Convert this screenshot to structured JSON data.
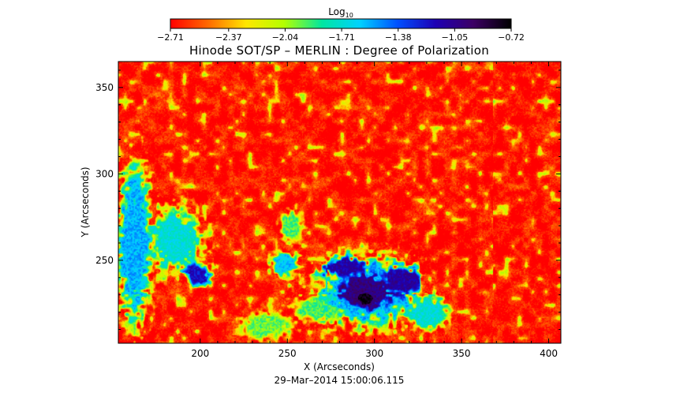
{
  "chart_data": {
    "type": "heatmap",
    "title": "Hinode SOT/SP – MERLIN : Degree of Polarization",
    "xlabel": "X (Arcseconds)",
    "ylabel": "Y (Arcseconds)",
    "xlim": [
      153,
      407
    ],
    "ylim": [
      202,
      365
    ],
    "x_ticks": [
      "200",
      "250",
      "300",
      "350",
      "400"
    ],
    "x_tick_values": [
      200,
      250,
      300,
      350,
      400
    ],
    "y_ticks": [
      "350",
      "300",
      "250"
    ],
    "y_tick_values": [
      350,
      300,
      250
    ],
    "timestamp": "29–Mar–2014 15:00:06.115",
    "colorbar": {
      "label_base": "Log",
      "label_sub": "10",
      "range": [
        -2.71,
        -0.72
      ],
      "tick_labels": [
        "−2.71",
        "−2.37",
        "−2.04",
        "−1.71",
        "−1.38",
        "−1.05",
        "−0.72"
      ],
      "tick_values": [
        -2.71,
        -2.37,
        -2.04,
        -1.71,
        -1.38,
        -1.05,
        -0.72
      ],
      "colors": [
        "#ff0000",
        "#ff6a00",
        "#ffe600",
        "#b4ff00",
        "#00e6a0",
        "#00d2ff",
        "#0050ff",
        "#1e00b4",
        "#3c0064",
        "#000000"
      ]
    },
    "background_level": -2.65,
    "regions": [
      {
        "name": "sunspot-umbra",
        "x": 295,
        "y": 228,
        "rx": 7,
        "ry": 6,
        "value": -0.78
      },
      {
        "name": "sunspot-inner-penumbra",
        "x": 295,
        "y": 232,
        "rx": 22,
        "ry": 15,
        "value": -1.02
      },
      {
        "name": "sunspot-outer-penumbra",
        "x": 296,
        "y": 232,
        "rx": 36,
        "ry": 24,
        "value": -1.55
      },
      {
        "name": "west-plage-east",
        "x": 315,
        "y": 238,
        "rx": 14,
        "ry": 10,
        "value": -1.1
      },
      {
        "name": "north-plage-north",
        "x": 283,
        "y": 246,
        "rx": 16,
        "ry": 7,
        "value": -1.12
      },
      {
        "name": "left-edge-plage",
        "x": 162,
        "y": 260,
        "rx": 12,
        "ry": 55,
        "value": -1.55
      },
      {
        "name": "left-plage-lobe",
        "x": 185,
        "y": 262,
        "rx": 20,
        "ry": 22,
        "value": -1.7
      },
      {
        "name": "mid-left-blob",
        "x": 198,
        "y": 242,
        "rx": 10,
        "ry": 8,
        "value": -1.2
      },
      {
        "name": "center-left-patch",
        "x": 248,
        "y": 248,
        "rx": 10,
        "ry": 9,
        "value": -1.6
      },
      {
        "name": "upper-center-patch",
        "x": 252,
        "y": 270,
        "rx": 8,
        "ry": 12,
        "value": -1.9
      },
      {
        "name": "lower-center-patch",
        "x": 270,
        "y": 222,
        "rx": 20,
        "ry": 10,
        "value": -1.9
      },
      {
        "name": "right-lower-patch",
        "x": 330,
        "y": 220,
        "rx": 14,
        "ry": 12,
        "value": -1.7
      },
      {
        "name": "bottom-left-patch",
        "x": 238,
        "y": 212,
        "rx": 18,
        "ry": 10,
        "value": -1.95
      }
    ]
  }
}
